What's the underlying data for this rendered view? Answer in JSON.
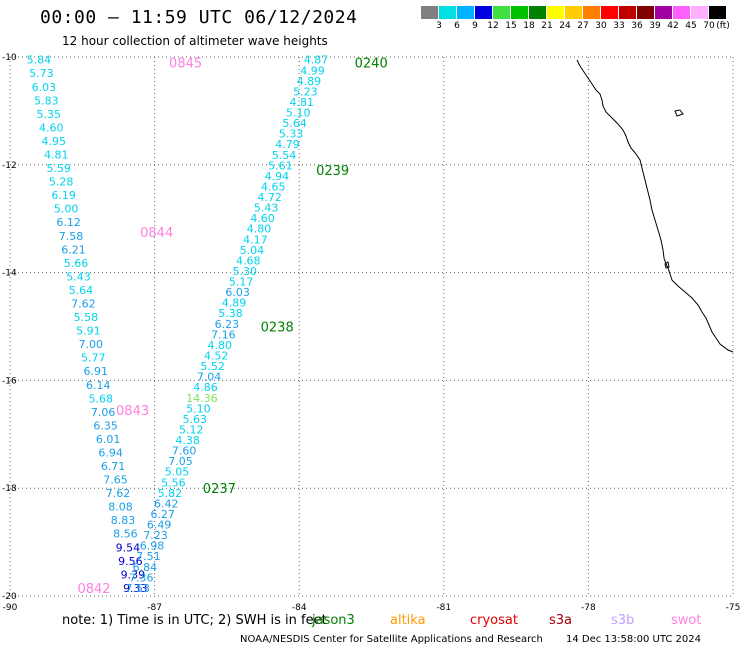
{
  "header": {
    "title": "00:00 – 11:59 UTC 06/12/2024",
    "subtitle": "12 hour collection of altimeter wave heights"
  },
  "legend": {
    "unit": "(ft)",
    "bins": [
      {
        "label": "3",
        "color": "#808080"
      },
      {
        "label": "6",
        "color": "#00e0e0"
      },
      {
        "label": "9",
        "color": "#00b4ff"
      },
      {
        "label": "12",
        "color": "#0000e0"
      },
      {
        "label": "15",
        "color": "#40e040"
      },
      {
        "label": "18",
        "color": "#00c000"
      },
      {
        "label": "21",
        "color": "#008000"
      },
      {
        "label": "24",
        "color": "#ffff00"
      },
      {
        "label": "27",
        "color": "#ffcc00"
      },
      {
        "label": "30",
        "color": "#ff8000"
      },
      {
        "label": "33",
        "color": "#ff0000"
      },
      {
        "label": "36",
        "color": "#c00000"
      },
      {
        "label": "39",
        "color": "#800000"
      },
      {
        "label": "42",
        "color": "#a000a0"
      },
      {
        "label": "45",
        "color": "#ff60ff"
      },
      {
        "label": "70",
        "color": "#ffb0ff"
      },
      {
        "label": "",
        "color": "#000000"
      }
    ]
  },
  "axes": {
    "lat_labels": [
      "-10",
      "-12",
      "-14",
      "-16",
      "-18",
      "-20"
    ],
    "lon_labels": [
      "-90",
      "-87",
      "-84",
      "-81",
      "-78",
      "-75"
    ],
    "lat_range": [
      -20,
      -10
    ],
    "lon_range": [
      -90,
      -75
    ]
  },
  "colors": {
    "cyan": "#00d4ee",
    "sky": "#1aa0e8",
    "blue": "#0000cc",
    "lightgreen": "#80e060",
    "green": "#008000",
    "pink": "#ff80e0"
  },
  "tracks": [
    {
      "id": "swot-west",
      "start": [
        -89.4,
        -10.05
      ],
      "end": [
        -87.4,
        -19.85
      ],
      "values": [
        {
          "v": "5.84",
          "c": "cyan"
        },
        {
          "v": "5.73",
          "c": "cyan"
        },
        {
          "v": "6.03",
          "c": "cyan"
        },
        {
          "v": "5.83",
          "c": "cyan"
        },
        {
          "v": "5.35",
          "c": "cyan"
        },
        {
          "v": "4.60",
          "c": "cyan"
        },
        {
          "v": "4.95",
          "c": "cyan"
        },
        {
          "v": "4.81",
          "c": "cyan"
        },
        {
          "v": "5.59",
          "c": "cyan"
        },
        {
          "v": "5.28",
          "c": "cyan"
        },
        {
          "v": "6.19",
          "c": "cyan"
        },
        {
          "v": "5.00",
          "c": "cyan"
        },
        {
          "v": "6.12",
          "c": "sky"
        },
        {
          "v": "7.58",
          "c": "sky"
        },
        {
          "v": "6.21",
          "c": "sky"
        },
        {
          "v": "5.66",
          "c": "cyan"
        },
        {
          "v": "5.43",
          "c": "cyan"
        },
        {
          "v": "5.64",
          "c": "cyan"
        },
        {
          "v": "7.62",
          "c": "sky"
        },
        {
          "v": "5.58",
          "c": "cyan"
        },
        {
          "v": "5.91",
          "c": "cyan"
        },
        {
          "v": "7.00",
          "c": "sky"
        },
        {
          "v": "5.77",
          "c": "cyan"
        },
        {
          "v": "6.91",
          "c": "sky"
        },
        {
          "v": "6.14",
          "c": "sky"
        },
        {
          "v": "5.68",
          "c": "cyan"
        },
        {
          "v": "7.06",
          "c": "sky"
        },
        {
          "v": "6.35",
          "c": "sky"
        },
        {
          "v": "6.01",
          "c": "sky"
        },
        {
          "v": "6.94",
          "c": "sky"
        },
        {
          "v": "6.71",
          "c": "sky"
        },
        {
          "v": "7.65",
          "c": "sky"
        },
        {
          "v": "7.62",
          "c": "sky"
        },
        {
          "v": "8.08",
          "c": "sky"
        },
        {
          "v": "8.83",
          "c": "sky"
        },
        {
          "v": "8.56",
          "c": "sky"
        },
        {
          "v": "9.54",
          "c": "blue"
        },
        {
          "v": "9.56",
          "c": "blue"
        },
        {
          "v": "9.39",
          "c": "blue"
        },
        {
          "v": "9.33",
          "c": "blue"
        }
      ]
    },
    {
      "id": "jason-east",
      "start": [
        -83.65,
        -10.05
      ],
      "end": [
        -87.35,
        -19.85
      ],
      "values": [
        {
          "v": "4.87",
          "c": "cyan"
        },
        {
          "v": "4.99",
          "c": "cyan"
        },
        {
          "v": "4.89",
          "c": "cyan"
        },
        {
          "v": "5.23",
          "c": "cyan"
        },
        {
          "v": "4.81",
          "c": "cyan"
        },
        {
          "v": "5.10",
          "c": "cyan"
        },
        {
          "v": "5.64",
          "c": "cyan"
        },
        {
          "v": "5.33",
          "c": "cyan"
        },
        {
          "v": "4.79",
          "c": "cyan"
        },
        {
          "v": "5.54",
          "c": "cyan"
        },
        {
          "v": "5.61",
          "c": "cyan"
        },
        {
          "v": "4.94",
          "c": "cyan"
        },
        {
          "v": "4.65",
          "c": "cyan"
        },
        {
          "v": "4.72",
          "c": "cyan"
        },
        {
          "v": "5.43",
          "c": "cyan"
        },
        {
          "v": "4.60",
          "c": "cyan"
        },
        {
          "v": "4.80",
          "c": "cyan"
        },
        {
          "v": "4.17",
          "c": "cyan"
        },
        {
          "v": "5.04",
          "c": "cyan"
        },
        {
          "v": "4.68",
          "c": "cyan"
        },
        {
          "v": "5.30",
          "c": "cyan"
        },
        {
          "v": "5.17",
          "c": "cyan"
        },
        {
          "v": "6.03",
          "c": "sky"
        },
        {
          "v": "4.89",
          "c": "cyan"
        },
        {
          "v": "5.38",
          "c": "cyan"
        },
        {
          "v": "6.23",
          "c": "sky"
        },
        {
          "v": "7.16",
          "c": "sky"
        },
        {
          "v": "4.80",
          "c": "cyan"
        },
        {
          "v": "4.52",
          "c": "cyan"
        },
        {
          "v": "5.52",
          "c": "cyan"
        },
        {
          "v": "7.04",
          "c": "sky"
        },
        {
          "v": "4.86",
          "c": "cyan"
        },
        {
          "v": "14.36",
          "c": "lightgreen"
        },
        {
          "v": "5.10",
          "c": "cyan"
        },
        {
          "v": "5.63",
          "c": "cyan"
        },
        {
          "v": "5.12",
          "c": "cyan"
        },
        {
          "v": "4.38",
          "c": "cyan"
        },
        {
          "v": "7.60",
          "c": "sky"
        },
        {
          "v": "7.05",
          "c": "sky"
        },
        {
          "v": "5.05",
          "c": "cyan"
        },
        {
          "v": "5.56",
          "c": "cyan"
        },
        {
          "v": "5.82",
          "c": "cyan"
        },
        {
          "v": "6.42",
          "c": "sky"
        },
        {
          "v": "6.27",
          "c": "sky"
        },
        {
          "v": "6.49",
          "c": "sky"
        },
        {
          "v": "7.23",
          "c": "sky"
        },
        {
          "v": "6.98",
          "c": "sky"
        },
        {
          "v": "7.51",
          "c": "sky"
        },
        {
          "v": "6.84",
          "c": "sky"
        },
        {
          "v": "7.36",
          "c": "sky"
        },
        {
          "v": "7.53",
          "c": "sky"
        }
      ]
    }
  ],
  "time_labels": [
    {
      "text": "0845",
      "lon": -86.7,
      "lat": -10.1,
      "c": "pink"
    },
    {
      "text": "0844",
      "lon": -87.3,
      "lat": -13.25,
      "c": "pink"
    },
    {
      "text": "0843",
      "lon": -87.8,
      "lat": -16.55,
      "c": "pink"
    },
    {
      "text": "0842",
      "lon": -88.6,
      "lat": -19.85,
      "c": "pink"
    },
    {
      "text": "0240",
      "lon": -82.85,
      "lat": -10.1,
      "c": "green"
    },
    {
      "text": "0239",
      "lon": -83.65,
      "lat": -12.1,
      "c": "green"
    },
    {
      "text": "0238",
      "lon": -84.8,
      "lat": -15.0,
      "c": "green"
    },
    {
      "text": "0237",
      "lon": -86.0,
      "lat": -18.0,
      "c": "green"
    }
  ],
  "footer": {
    "note": "note: 1) Time is in UTC; 2) SWH is in feet",
    "missions": [
      {
        "name": "jason3",
        "color": "#008000"
      },
      {
        "name": "altika",
        "color": "#ff9900"
      },
      {
        "name": "cryosat",
        "color": "#e00000"
      },
      {
        "name": "s3a",
        "color": "#a00000"
      },
      {
        "name": "s3b",
        "color": "#c0a0ff"
      },
      {
        "name": "swot",
        "color": "#ff80e0"
      }
    ],
    "credit": "NOAA/NESDIS Center for Satellite Applications and Research",
    "timestamp": "14 Dec 13:58:00 UTC 2024"
  }
}
